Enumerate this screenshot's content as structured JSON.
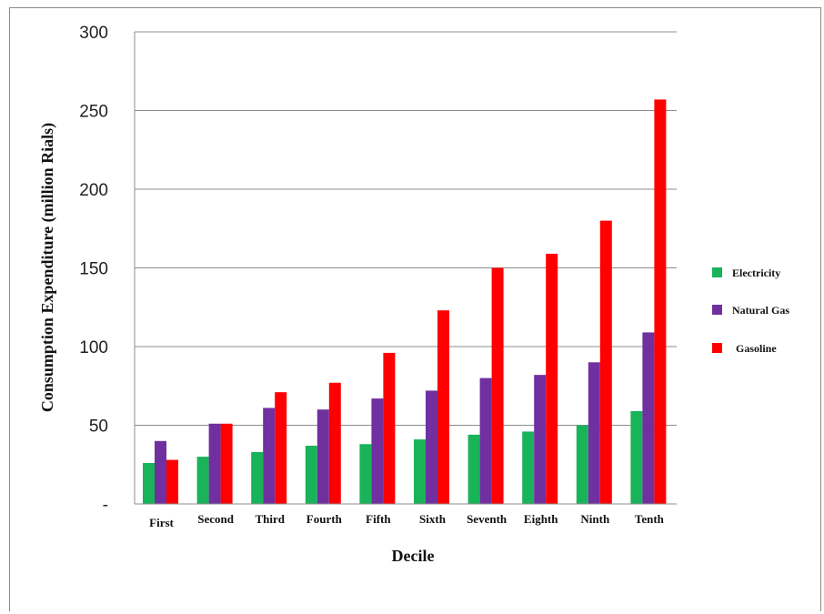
{
  "chart_data": {
    "type": "bar",
    "title": "",
    "xlabel": "Decile",
    "ylabel": "Consumption Expenditure (million Rials)",
    "ylim": [
      0,
      300
    ],
    "yticks": [
      0,
      50,
      100,
      150,
      200,
      250,
      300
    ],
    "ytick_labels": [
      "-",
      "50",
      "100",
      "150",
      "200",
      "250",
      "300"
    ],
    "grid": true,
    "legend_position": "right",
    "categories": [
      "First",
      "Second",
      "Third",
      "Fourth",
      "Fifth",
      "Sixth",
      "Seventh",
      "Eighth",
      "Ninth",
      "Tenth"
    ],
    "series": [
      {
        "name": "Electricity",
        "color": "#19b35a",
        "values": [
          26,
          30,
          33,
          37,
          38,
          41,
          44,
          46,
          50,
          59
        ]
      },
      {
        "name": "Natural Gas",
        "color": "#7030a0",
        "values": [
          40,
          51,
          61,
          60,
          67,
          72,
          80,
          82,
          90,
          109
        ]
      },
      {
        "name": "Gasoline",
        "color": "#ff0000",
        "values": [
          28,
          51,
          71,
          77,
          96,
          123,
          150,
          159,
          180,
          257
        ]
      }
    ]
  }
}
